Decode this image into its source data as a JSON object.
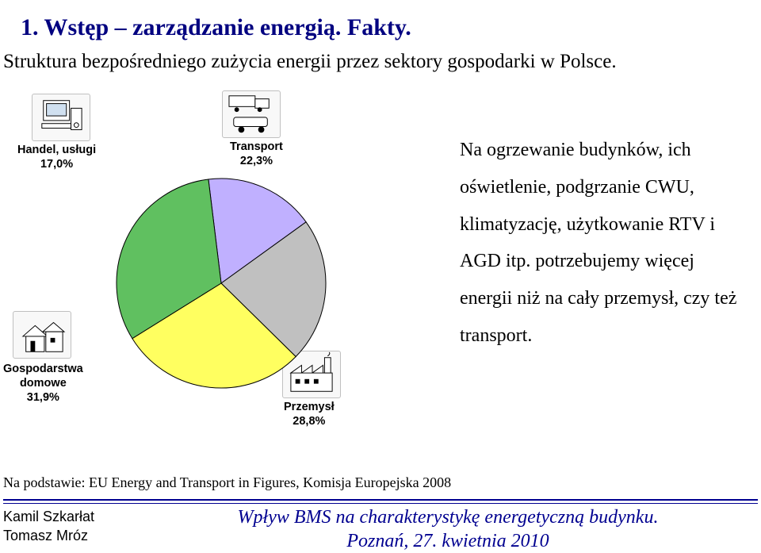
{
  "title": "1. Wstęp – zarządzanie energią. Fakty.",
  "subtitle": "Struktura bezpośredniego zużycia energii przez sektory gospodarki w Polsce.",
  "body_text": "Na ogrzewanie budynków, ich oświetlenie, podgrzanie CWU, klimatyzację, użytkowanie RTV i AGD itp. potrzebujemy więcej energii niż na cały przemysł, czy też transport.",
  "source": "Na podstawie: EU Energy and Transport in Figures, Komisja Europejska 2008",
  "authors_line1": "Kamil Szkarłat",
  "authors_line2": "Tomasz Mróz",
  "footer_title_line1": "Wpływ BMS na charakterystykę energetyczną budynku.",
  "footer_title_line2": "Poznań, 27. kwietnia 2010",
  "chart": {
    "type": "pie",
    "background_color": "#ffffff",
    "slice_border_color": "#000000",
    "label_fontsize": 14,
    "sectors": [
      {
        "name": "Handel, usługi",
        "value": 17.0,
        "label": "Handel, usługi\n17,0%",
        "color": "#c0b0ff",
        "icon": "computer"
      },
      {
        "name": "Transport",
        "value": 22.3,
        "label": "Transport\n22,3%",
        "color": "#c0c0c0",
        "icon": "truck"
      },
      {
        "name": "Przemysł",
        "value": 28.8,
        "label": "Przemysł\n28,8%",
        "color": "#ffff60",
        "icon": "factory"
      },
      {
        "name": "Gospodarstwa domowe",
        "value": 31.9,
        "label": "Gospodarstwa\ndomowe\n31,9%",
        "color": "#60c060",
        "icon": "house"
      }
    ],
    "start_angle_deg": -97
  },
  "styling": {
    "title_color": "#000080",
    "body_fontsize": 24,
    "footer_color": "#000090",
    "divider_color": "#000090"
  }
}
